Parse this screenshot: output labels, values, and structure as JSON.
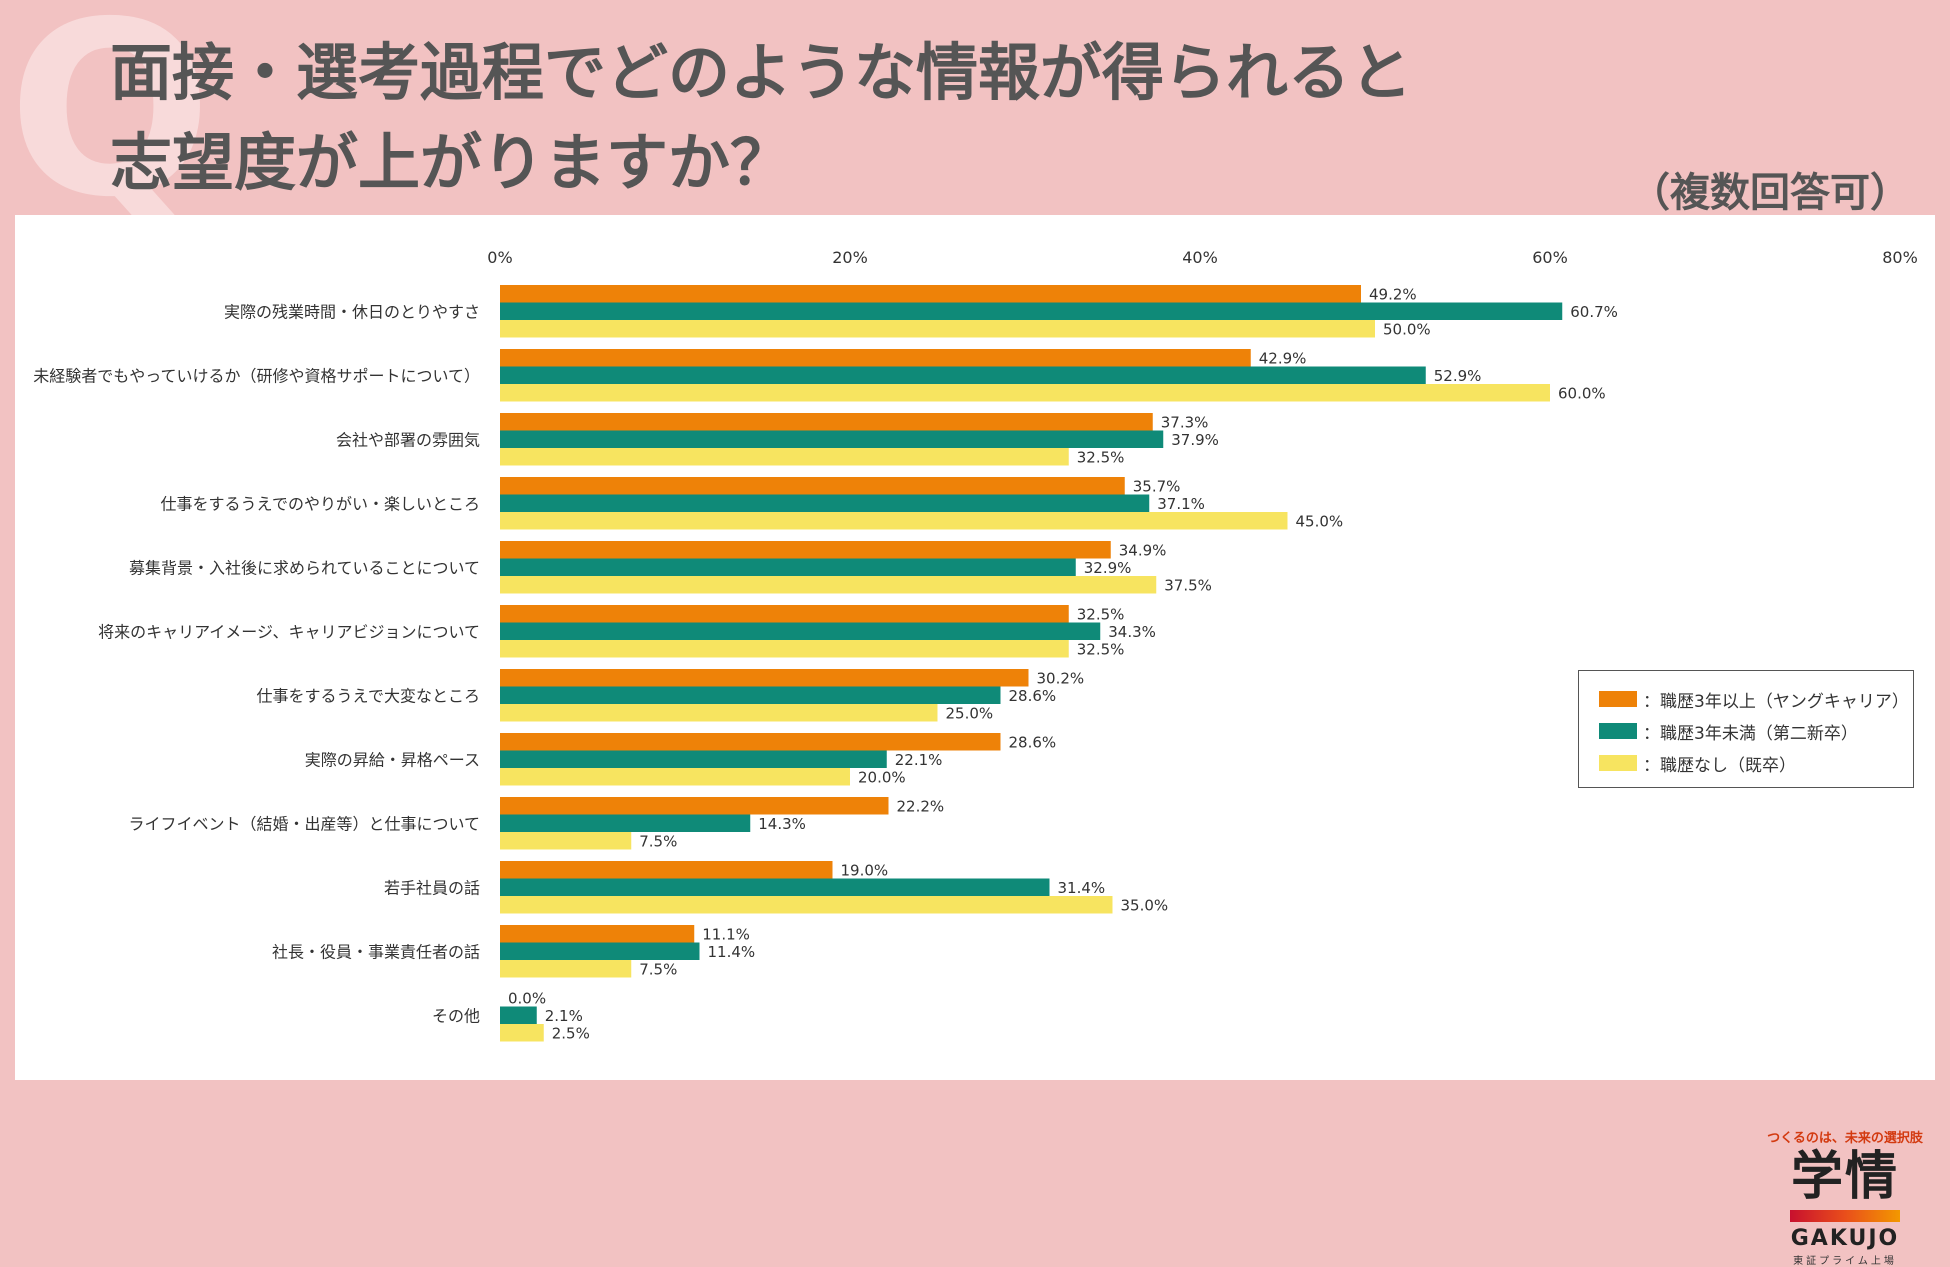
{
  "header": {
    "deco": "Q",
    "title_line1": "面接・選考過程でどのような情報が得られると",
    "title_line2": "志望度が上がりますか？",
    "subtitle": "（複数回答可）"
  },
  "colors": {
    "background": "#f2c2c2",
    "panel": "#ffffff",
    "series": [
      "#ee8208",
      "#0f8a78",
      "#f7e460"
    ]
  },
  "logo": {
    "tagline": "つくるのは、未来の選択肢",
    "main": "学情",
    "gakujo": "GAKUJO",
    "listing": "東証プライム上場"
  },
  "chart_data": {
    "type": "bar",
    "orientation": "horizontal",
    "title": "面接・選考過程でどのような情報が得られると志望度が上がりますか？",
    "xlim": [
      0,
      80
    ],
    "ticks": [
      "0%",
      "20%",
      "40%",
      "60%",
      "80%"
    ],
    "tick_values": [
      0,
      20,
      40,
      60,
      80
    ],
    "legend_position": "right",
    "categories": [
      "実際の残業時間・休日のとりやすさ",
      "未経験者でもやっていけるか（研修や資格サポートについて）",
      "会社や部署の雰囲気",
      "仕事をするうえでのやりがい・楽しいところ",
      "募集背景・入社後に求められていることについて",
      "将来のキャリアイメージ、キャリアビジョンについて",
      "仕事をするうえで大変なところ",
      "実際の昇給・昇格ペース",
      "ライフイベント（結婚・出産等）と仕事について",
      "若手社員の話",
      "社長・役員・事業責任者の話",
      "その他"
    ],
    "series": [
      {
        "name": "職歴3年以上（ヤングキャリア）",
        "legend_label": "：職歴3年以上（ヤングキャリア）",
        "color": "#ee8208",
        "values": [
          49.2,
          42.9,
          37.3,
          35.7,
          34.9,
          32.5,
          30.2,
          28.6,
          22.2,
          19.0,
          11.1,
          0.0
        ],
        "labels": [
          "49.2%",
          "42.9%",
          "37.3%",
          "35.7%",
          "34.9%",
          "32.5%",
          "30.2%",
          "28.6%",
          "22.2%",
          "19.0%",
          "11.1%",
          "0.0%"
        ]
      },
      {
        "name": "職歴3年未満（第二新卒）",
        "legend_label": "：職歴3年未満（第二新卒）",
        "color": "#0f8a78",
        "values": [
          60.7,
          52.9,
          37.9,
          37.1,
          32.9,
          34.3,
          28.6,
          22.1,
          14.3,
          31.4,
          11.4,
          2.1
        ],
        "labels": [
          "60.7%",
          "52.9%",
          "37.9%",
          "37.1%",
          "32.9%",
          "34.3%",
          "28.6%",
          "22.1%",
          "14.3%",
          "31.4%",
          "11.4%",
          "2.1%"
        ]
      },
      {
        "name": "職歴なし（既卒）",
        "legend_label": "：職歴なし（既卒）",
        "color": "#f7e460",
        "values": [
          50.0,
          60.0,
          32.5,
          45.0,
          37.5,
          32.5,
          25.0,
          20.0,
          7.5,
          35.0,
          7.5,
          2.5
        ],
        "labels": [
          "50.0%",
          "60.0%",
          "32.5%",
          "45.0%",
          "37.5%",
          "32.5%",
          "25.0%",
          "20.0%",
          "7.5%",
          "35.0%",
          "7.5%",
          "2.5%"
        ]
      }
    ]
  }
}
